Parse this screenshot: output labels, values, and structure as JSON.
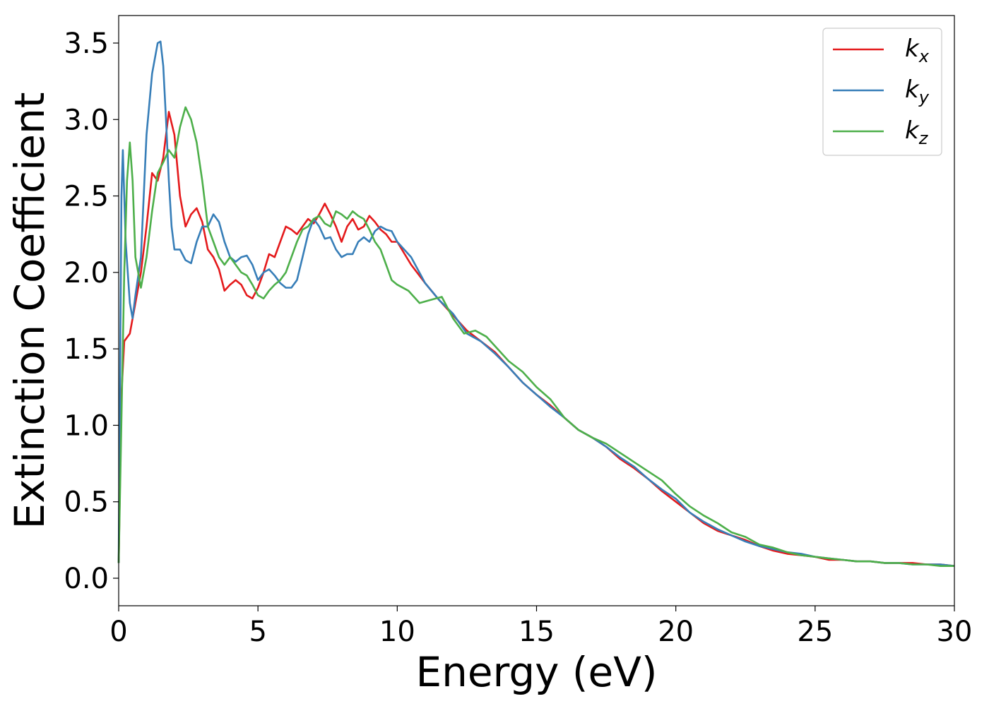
{
  "chart_data": {
    "type": "line",
    "title": "",
    "xlabel": "Energy (eV)",
    "ylabel": "Extinction Coefficient",
    "xlim": [
      0,
      30
    ],
    "ylim": [
      -0.18,
      3.68
    ],
    "xticks": [
      0,
      5,
      10,
      15,
      20,
      25,
      30
    ],
    "xtick_labels": [
      "0",
      "5",
      "10",
      "15",
      "20",
      "25",
      "30"
    ],
    "yticks": [
      0.0,
      0.5,
      1.0,
      1.5,
      2.0,
      2.5,
      3.0,
      3.5
    ],
    "ytick_labels": [
      "0.0",
      "0.5",
      "1.0",
      "1.5",
      "2.0",
      "2.5",
      "3.0",
      "3.5"
    ],
    "grid": false,
    "legend_position": "top-right",
    "series": [
      {
        "name": "k_x",
        "legend_base": "k",
        "legend_sub": "x",
        "color": "#e41a1c",
        "x": [
          0,
          0.1,
          0.2,
          0.4,
          0.6,
          0.8,
          1.0,
          1.2,
          1.4,
          1.6,
          1.8,
          2.0,
          2.2,
          2.4,
          2.6,
          2.8,
          3.0,
          3.2,
          3.4,
          3.6,
          3.8,
          4.0,
          4.2,
          4.4,
          4.6,
          4.8,
          5.0,
          5.2,
          5.4,
          5.6,
          5.8,
          6.0,
          6.2,
          6.4,
          6.6,
          6.8,
          7.0,
          7.2,
          7.4,
          7.6,
          7.8,
          8.0,
          8.2,
          8.4,
          8.6,
          8.8,
          9.0,
          9.2,
          9.4,
          9.6,
          9.8,
          10.0,
          10.5,
          11.0,
          11.5,
          12.0,
          12.5,
          13.0,
          13.5,
          14.0,
          14.5,
          15.0,
          15.5,
          16.0,
          16.5,
          17.0,
          17.5,
          18.0,
          18.5,
          19.0,
          19.5,
          20.0,
          20.5,
          21.0,
          21.5,
          22.0,
          22.5,
          23.0,
          23.5,
          24.0,
          24.5,
          25.0,
          25.5,
          26.0,
          26.5,
          27.0,
          27.5,
          28.0,
          28.5,
          29.0,
          29.5,
          30.0
        ],
        "y": [
          0.1,
          1.2,
          1.55,
          1.6,
          1.8,
          2.0,
          2.3,
          2.65,
          2.6,
          2.75,
          3.05,
          2.9,
          2.5,
          2.3,
          2.38,
          2.42,
          2.33,
          2.15,
          2.1,
          2.02,
          1.88,
          1.92,
          1.95,
          1.92,
          1.85,
          1.83,
          1.9,
          2.0,
          2.12,
          2.1,
          2.2,
          2.3,
          2.28,
          2.25,
          2.3,
          2.35,
          2.32,
          2.38,
          2.45,
          2.38,
          2.3,
          2.2,
          2.3,
          2.35,
          2.28,
          2.3,
          2.37,
          2.33,
          2.28,
          2.25,
          2.2,
          2.2,
          2.05,
          1.93,
          1.82,
          1.72,
          1.62,
          1.55,
          1.48,
          1.38,
          1.28,
          1.2,
          1.13,
          1.05,
          0.97,
          0.92,
          0.86,
          0.78,
          0.72,
          0.65,
          0.57,
          0.5,
          0.43,
          0.36,
          0.31,
          0.28,
          0.25,
          0.21,
          0.18,
          0.16,
          0.15,
          0.14,
          0.12,
          0.12,
          0.11,
          0.11,
          0.1,
          0.1,
          0.1,
          0.09,
          0.09,
          0.08
        ]
      },
      {
        "name": "k_y",
        "legend_base": "k",
        "legend_sub": "y",
        "color": "#377eb8",
        "x": [
          0,
          0.1,
          0.15,
          0.25,
          0.4,
          0.5,
          0.6,
          0.8,
          1.0,
          1.2,
          1.4,
          1.5,
          1.6,
          1.7,
          1.8,
          1.9,
          2.0,
          2.2,
          2.4,
          2.6,
          2.8,
          3.0,
          3.2,
          3.4,
          3.6,
          3.8,
          4.0,
          4.2,
          4.4,
          4.6,
          4.8,
          5.0,
          5.2,
          5.4,
          5.6,
          5.8,
          6.0,
          6.2,
          6.4,
          6.6,
          6.8,
          7.0,
          7.2,
          7.4,
          7.6,
          7.8,
          8.0,
          8.2,
          8.4,
          8.6,
          8.8,
          9.0,
          9.2,
          9.4,
          9.6,
          9.8,
          10.0,
          10.5,
          11.0,
          11.5,
          12.0,
          12.5,
          13.0,
          13.5,
          14.0,
          14.5,
          15.0,
          15.5,
          16.0,
          16.5,
          17.0,
          17.5,
          18.0,
          18.5,
          19.0,
          19.5,
          20.0,
          20.5,
          21.0,
          21.5,
          22.0,
          22.5,
          23.0,
          23.5,
          24.0,
          24.5,
          25.0,
          25.5,
          26.0,
          26.5,
          27.0,
          27.5,
          28.0,
          28.5,
          29.0,
          29.5,
          30.0
        ],
        "y": [
          0.1,
          2.5,
          2.8,
          2.2,
          1.8,
          1.7,
          1.85,
          2.1,
          2.9,
          3.3,
          3.5,
          3.51,
          3.35,
          3.0,
          2.6,
          2.3,
          2.15,
          2.15,
          2.08,
          2.06,
          2.2,
          2.3,
          2.3,
          2.38,
          2.33,
          2.2,
          2.1,
          2.07,
          2.1,
          2.11,
          2.05,
          1.95,
          2.0,
          2.02,
          1.98,
          1.93,
          1.9,
          1.9,
          1.95,
          2.1,
          2.25,
          2.35,
          2.3,
          2.22,
          2.23,
          2.15,
          2.1,
          2.12,
          2.12,
          2.2,
          2.23,
          2.2,
          2.27,
          2.3,
          2.28,
          2.27,
          2.2,
          2.1,
          1.93,
          1.82,
          1.73,
          1.6,
          1.55,
          1.47,
          1.38,
          1.28,
          1.2,
          1.12,
          1.05,
          0.97,
          0.92,
          0.86,
          0.79,
          0.73,
          0.65,
          0.58,
          0.52,
          0.43,
          0.37,
          0.32,
          0.28,
          0.24,
          0.21,
          0.19,
          0.17,
          0.16,
          0.14,
          0.13,
          0.12,
          0.11,
          0.11,
          0.1,
          0.1,
          0.09,
          0.09,
          0.09,
          0.08
        ]
      },
      {
        "name": "k_z",
        "legend_base": "k",
        "legend_sub": "z",
        "color": "#4daf4a",
        "x": [
          0,
          0.2,
          0.3,
          0.4,
          0.5,
          0.6,
          0.8,
          1.0,
          1.2,
          1.4,
          1.6,
          1.8,
          2.0,
          2.2,
          2.4,
          2.6,
          2.8,
          3.0,
          3.2,
          3.4,
          3.6,
          3.8,
          4.0,
          4.2,
          4.4,
          4.6,
          4.8,
          5.0,
          5.2,
          5.4,
          5.6,
          5.8,
          6.0,
          6.2,
          6.4,
          6.6,
          6.8,
          7.0,
          7.2,
          7.4,
          7.6,
          7.8,
          8.0,
          8.2,
          8.4,
          8.6,
          8.8,
          9.0,
          9.2,
          9.4,
          9.6,
          9.8,
          10.0,
          10.4,
          10.8,
          11.2,
          11.6,
          12.0,
          12.4,
          12.8,
          13.2,
          13.6,
          14.0,
          14.5,
          15.0,
          15.5,
          16.0,
          16.5,
          17.0,
          17.5,
          18.0,
          18.5,
          19.0,
          19.5,
          20.0,
          20.5,
          21.0,
          21.5,
          22.0,
          22.5,
          23.0,
          23.5,
          24.0,
          24.5,
          25.0,
          25.5,
          26.0,
          26.5,
          27.0,
          27.5,
          28.0,
          28.5,
          29.0,
          29.5,
          30.0
        ],
        "y": [
          0.1,
          2.0,
          2.6,
          2.85,
          2.6,
          2.1,
          1.9,
          2.1,
          2.4,
          2.65,
          2.72,
          2.8,
          2.75,
          2.95,
          3.08,
          3.0,
          2.85,
          2.6,
          2.3,
          2.2,
          2.1,
          2.05,
          2.1,
          2.05,
          2.0,
          1.98,
          1.92,
          1.85,
          1.83,
          1.88,
          1.92,
          1.95,
          2.0,
          2.1,
          2.2,
          2.28,
          2.3,
          2.35,
          2.37,
          2.32,
          2.3,
          2.4,
          2.38,
          2.35,
          2.4,
          2.37,
          2.35,
          2.28,
          2.2,
          2.15,
          2.05,
          1.95,
          1.92,
          1.88,
          1.8,
          1.82,
          1.84,
          1.7,
          1.6,
          1.62,
          1.58,
          1.5,
          1.42,
          1.35,
          1.25,
          1.17,
          1.05,
          0.97,
          0.92,
          0.88,
          0.82,
          0.76,
          0.7,
          0.64,
          0.55,
          0.47,
          0.41,
          0.36,
          0.3,
          0.27,
          0.22,
          0.2,
          0.17,
          0.15,
          0.14,
          0.13,
          0.12,
          0.11,
          0.11,
          0.1,
          0.1,
          0.09,
          0.09,
          0.08,
          0.08
        ]
      }
    ]
  }
}
